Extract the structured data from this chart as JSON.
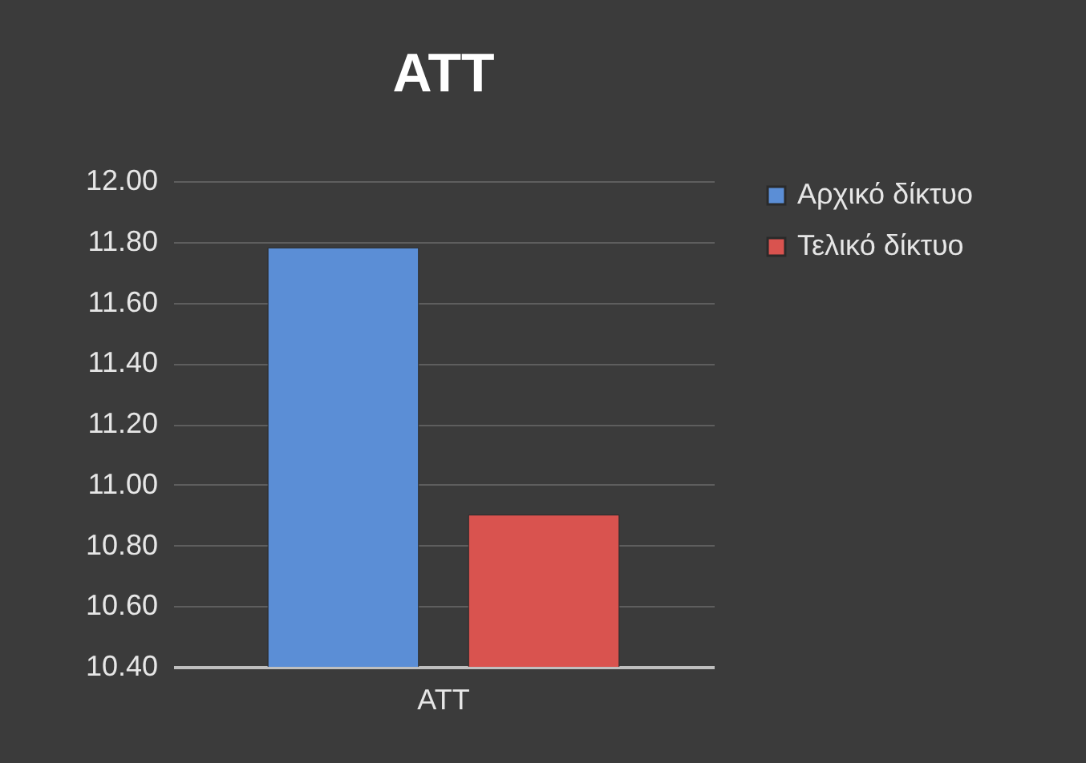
{
  "chart_data": {
    "type": "bar",
    "title": "ATT",
    "categories": [
      "ATT"
    ],
    "series": [
      {
        "name": "Αρχικό δίκτυο",
        "color": "#5b8ed6",
        "values": [
          11.78
        ]
      },
      {
        "name": "Τελικό δίκτυο",
        "color": "#d9534f",
        "values": [
          10.9
        ]
      }
    ],
    "ylim": [
      10.4,
      12
    ],
    "yticks": [
      {
        "value": 10.4,
        "label": "10.40"
      },
      {
        "value": 10.6,
        "label": "10.60"
      },
      {
        "value": 10.8,
        "label": "10.80"
      },
      {
        "value": 11,
        "label": "11.00"
      },
      {
        "value": 11.2,
        "label": "11.20"
      },
      {
        "value": 11.4,
        "label": "11.40"
      },
      {
        "value": 11.6,
        "label": "11.60"
      },
      {
        "value": 11.8,
        "label": "11.80"
      },
      {
        "value": 12,
        "label": "12.00"
      }
    ],
    "grid": "y",
    "legend": "right"
  }
}
